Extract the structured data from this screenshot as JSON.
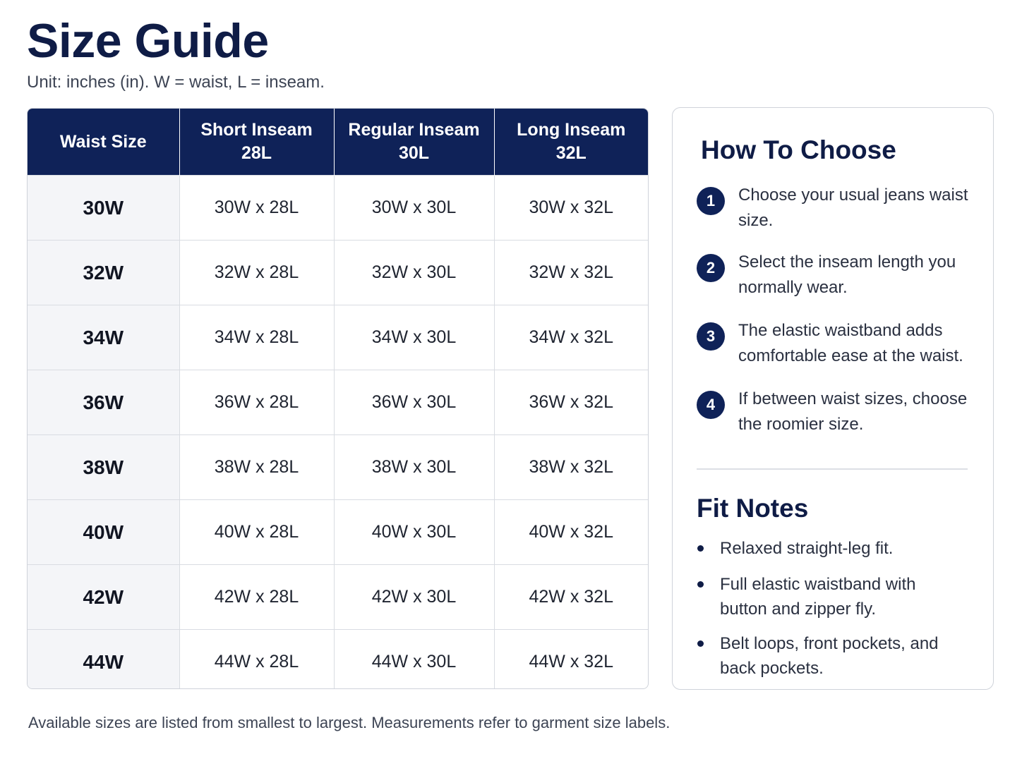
{
  "page": {
    "title": "Size Guide",
    "subtitle": "Unit: inches (in). W = waist, L = inseam.",
    "footer": "Available sizes are listed from smallest to largest. Measurements refer to garment size labels."
  },
  "colors": {
    "header_bg": "#0f2258",
    "title": "#0f1c46",
    "waist_cell_bg": "#f4f5f8"
  },
  "table": {
    "headers": [
      {
        "line1": "Waist Size",
        "line2": ""
      },
      {
        "line1": "Short Inseam",
        "line2": "28L"
      },
      {
        "line1": "Regular Inseam",
        "line2": "30L"
      },
      {
        "line1": "Long Inseam",
        "line2": "32L"
      }
    ],
    "rows": [
      {
        "waist": "30W",
        "short": "30W x 28L",
        "regular": "30W x 30L",
        "long": "30W x 32L"
      },
      {
        "waist": "32W",
        "short": "32W x 28L",
        "regular": "32W x 30L",
        "long": "32W x 32L"
      },
      {
        "waist": "34W",
        "short": "34W x 28L",
        "regular": "34W x 30L",
        "long": "34W x 32L"
      },
      {
        "waist": "36W",
        "short": "36W x 28L",
        "regular": "36W x 30L",
        "long": "36W x 32L"
      },
      {
        "waist": "38W",
        "short": "38W x 28L",
        "regular": "38W x 30L",
        "long": "38W x 32L"
      },
      {
        "waist": "40W",
        "short": "40W x 28L",
        "regular": "40W x 30L",
        "long": "40W x 32L"
      },
      {
        "waist": "42W",
        "short": "42W x 28L",
        "regular": "42W x 30L",
        "long": "42W x 32L"
      },
      {
        "waist": "44W",
        "short": "44W x 28L",
        "regular": "44W x 30L",
        "long": "44W x 32L"
      }
    ]
  },
  "how_to_choose": {
    "heading": "How To Choose",
    "steps": [
      {
        "num": "1",
        "text": "Choose your usual jeans waist size."
      },
      {
        "num": "2",
        "text": "Select the inseam length you normally wear."
      },
      {
        "num": "3",
        "text": "The elastic waistband adds comfortable ease at the waist."
      },
      {
        "num": "4",
        "text": "If between waist sizes, choose the roomier size."
      }
    ]
  },
  "fit_notes": {
    "heading": "Fit Notes",
    "items": [
      "Relaxed straight-leg fit.",
      "Full elastic waistband with button and zipper fly.",
      "Belt loops, front pockets, and back pockets."
    ]
  }
}
